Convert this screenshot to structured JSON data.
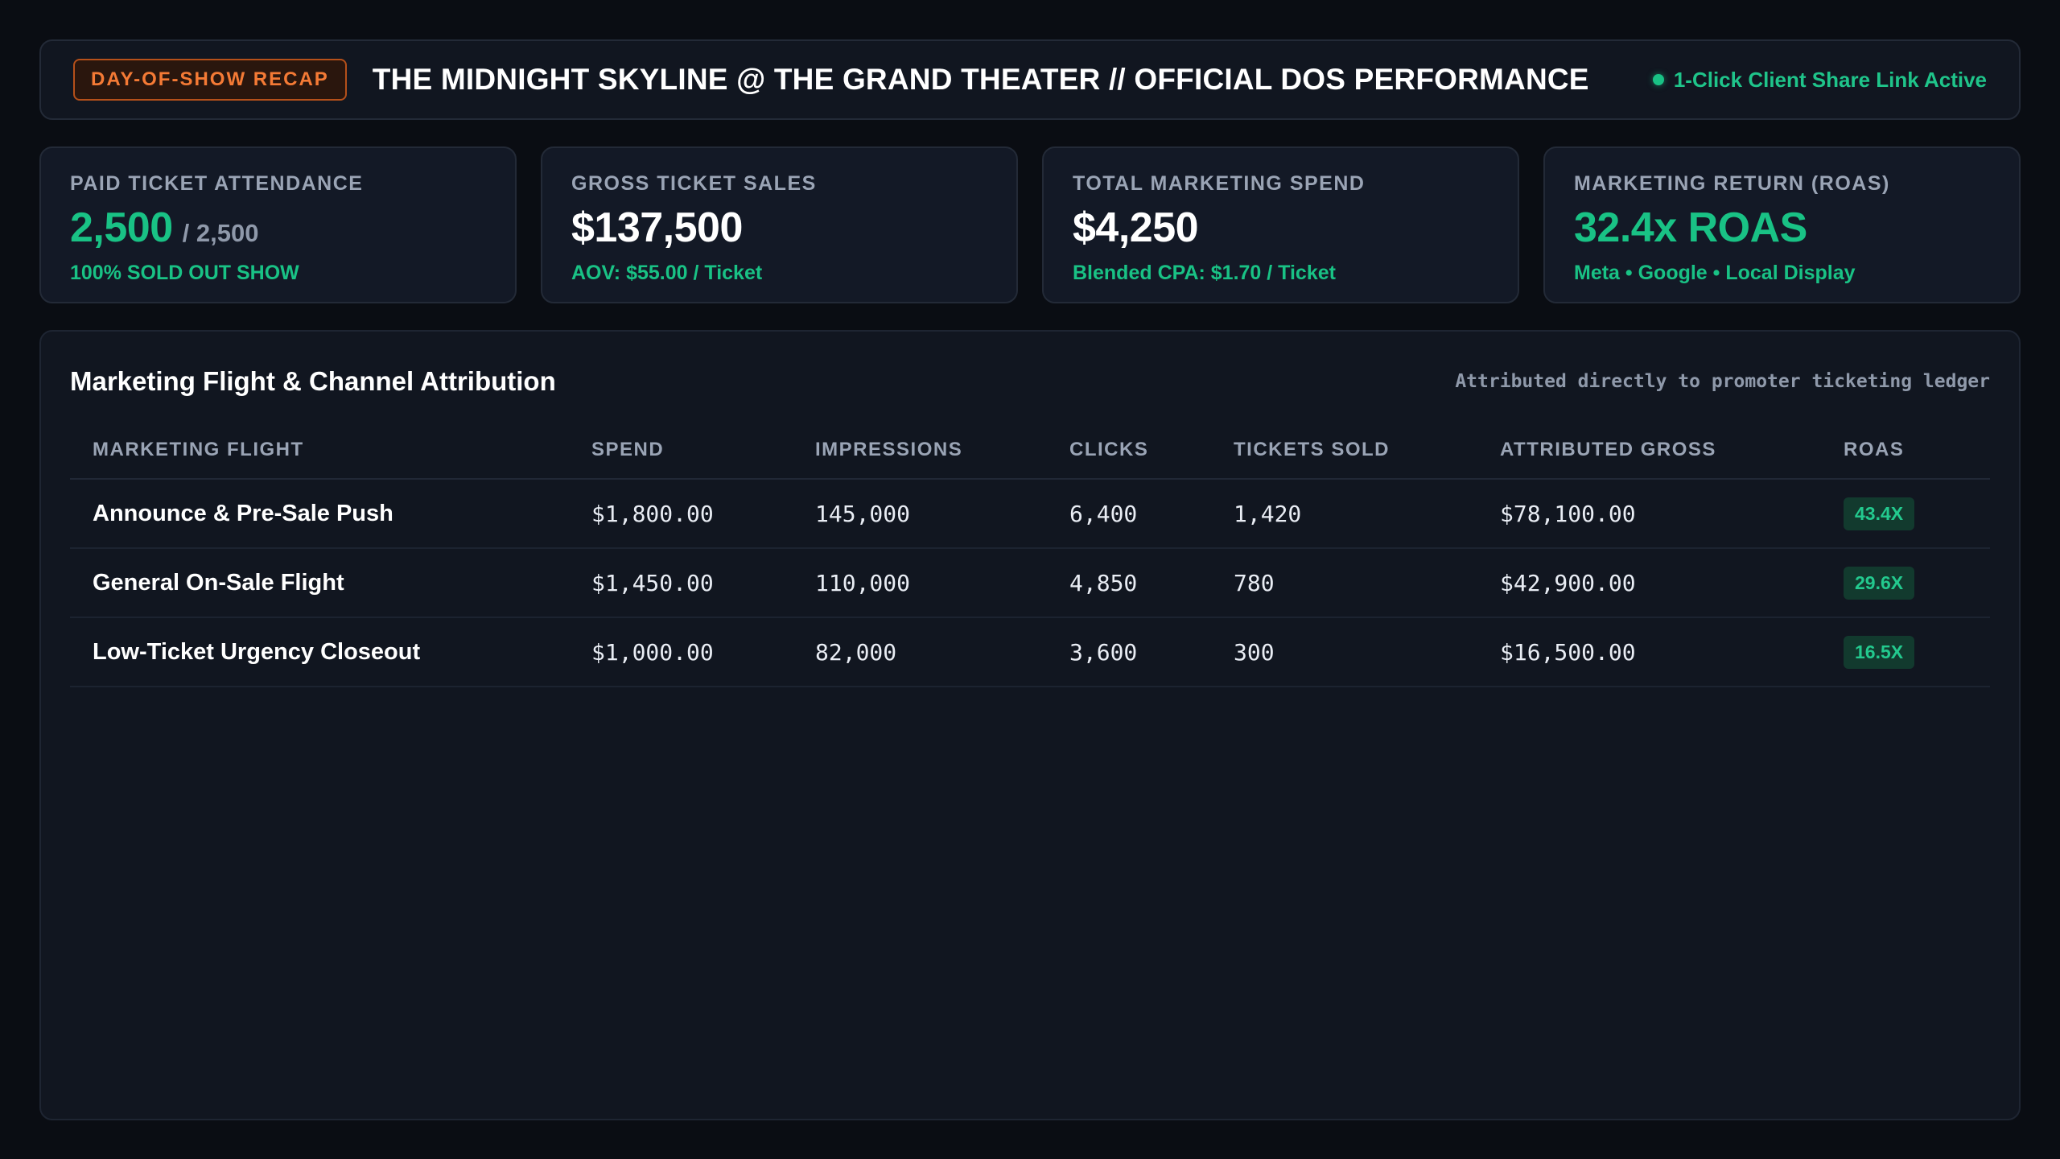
{
  "header": {
    "badge": "DAY-OF-SHOW RECAP",
    "title": "THE MIDNIGHT SKYLINE @ THE GRAND THEATER // OFFICIAL DOS PERFORMANCE",
    "share_status": "1-Click Client Share Link Active"
  },
  "kpis": [
    {
      "label": "PAID TICKET ATTENDANCE",
      "value": "2,500",
      "suffix": "/ 2,500",
      "sub": "100% SOLD OUT SHOW"
    },
    {
      "label": "GROSS TICKET SALES",
      "value": "$137,500",
      "suffix": "",
      "sub": "AOV: $55.00 / Ticket"
    },
    {
      "label": "TOTAL MARKETING SPEND",
      "value": "$4,250",
      "suffix": "",
      "sub": "Blended CPA: $1.70 / Ticket"
    },
    {
      "label": "MARKETING RETURN (ROAS)",
      "value": "32.4x ROAS",
      "suffix": "",
      "sub": "Meta • Google • Local Display"
    }
  ],
  "attribution": {
    "title": "Marketing Flight & Channel Attribution",
    "note": "Attributed directly to promoter ticketing ledger",
    "columns": [
      "MARKETING FLIGHT",
      "SPEND",
      "IMPRESSIONS",
      "CLICKS",
      "TICKETS SOLD",
      "ATTRIBUTED GROSS",
      "ROAS"
    ],
    "rows": [
      {
        "flight": "Announce & Pre-Sale Push",
        "spend": "$1,800.00",
        "impressions": "145,000",
        "clicks": "6,400",
        "tickets": "1,420",
        "gross": "$78,100.00",
        "roas": "43.4X"
      },
      {
        "flight": "General On-Sale Flight",
        "spend": "$1,450.00",
        "impressions": "110,000",
        "clicks": "4,850",
        "tickets": "780",
        "gross": "$42,900.00",
        "roas": "29.6X"
      },
      {
        "flight": "Low-Ticket Urgency Closeout",
        "spend": "$1,000.00",
        "impressions": "82,000",
        "clicks": "3,600",
        "tickets": "300",
        "gross": "$16,500.00",
        "roas": "16.5X"
      }
    ]
  },
  "colors": {
    "accent_green": "#19c285",
    "badge_orange": "#f47a35",
    "background": "#0a0d13"
  }
}
